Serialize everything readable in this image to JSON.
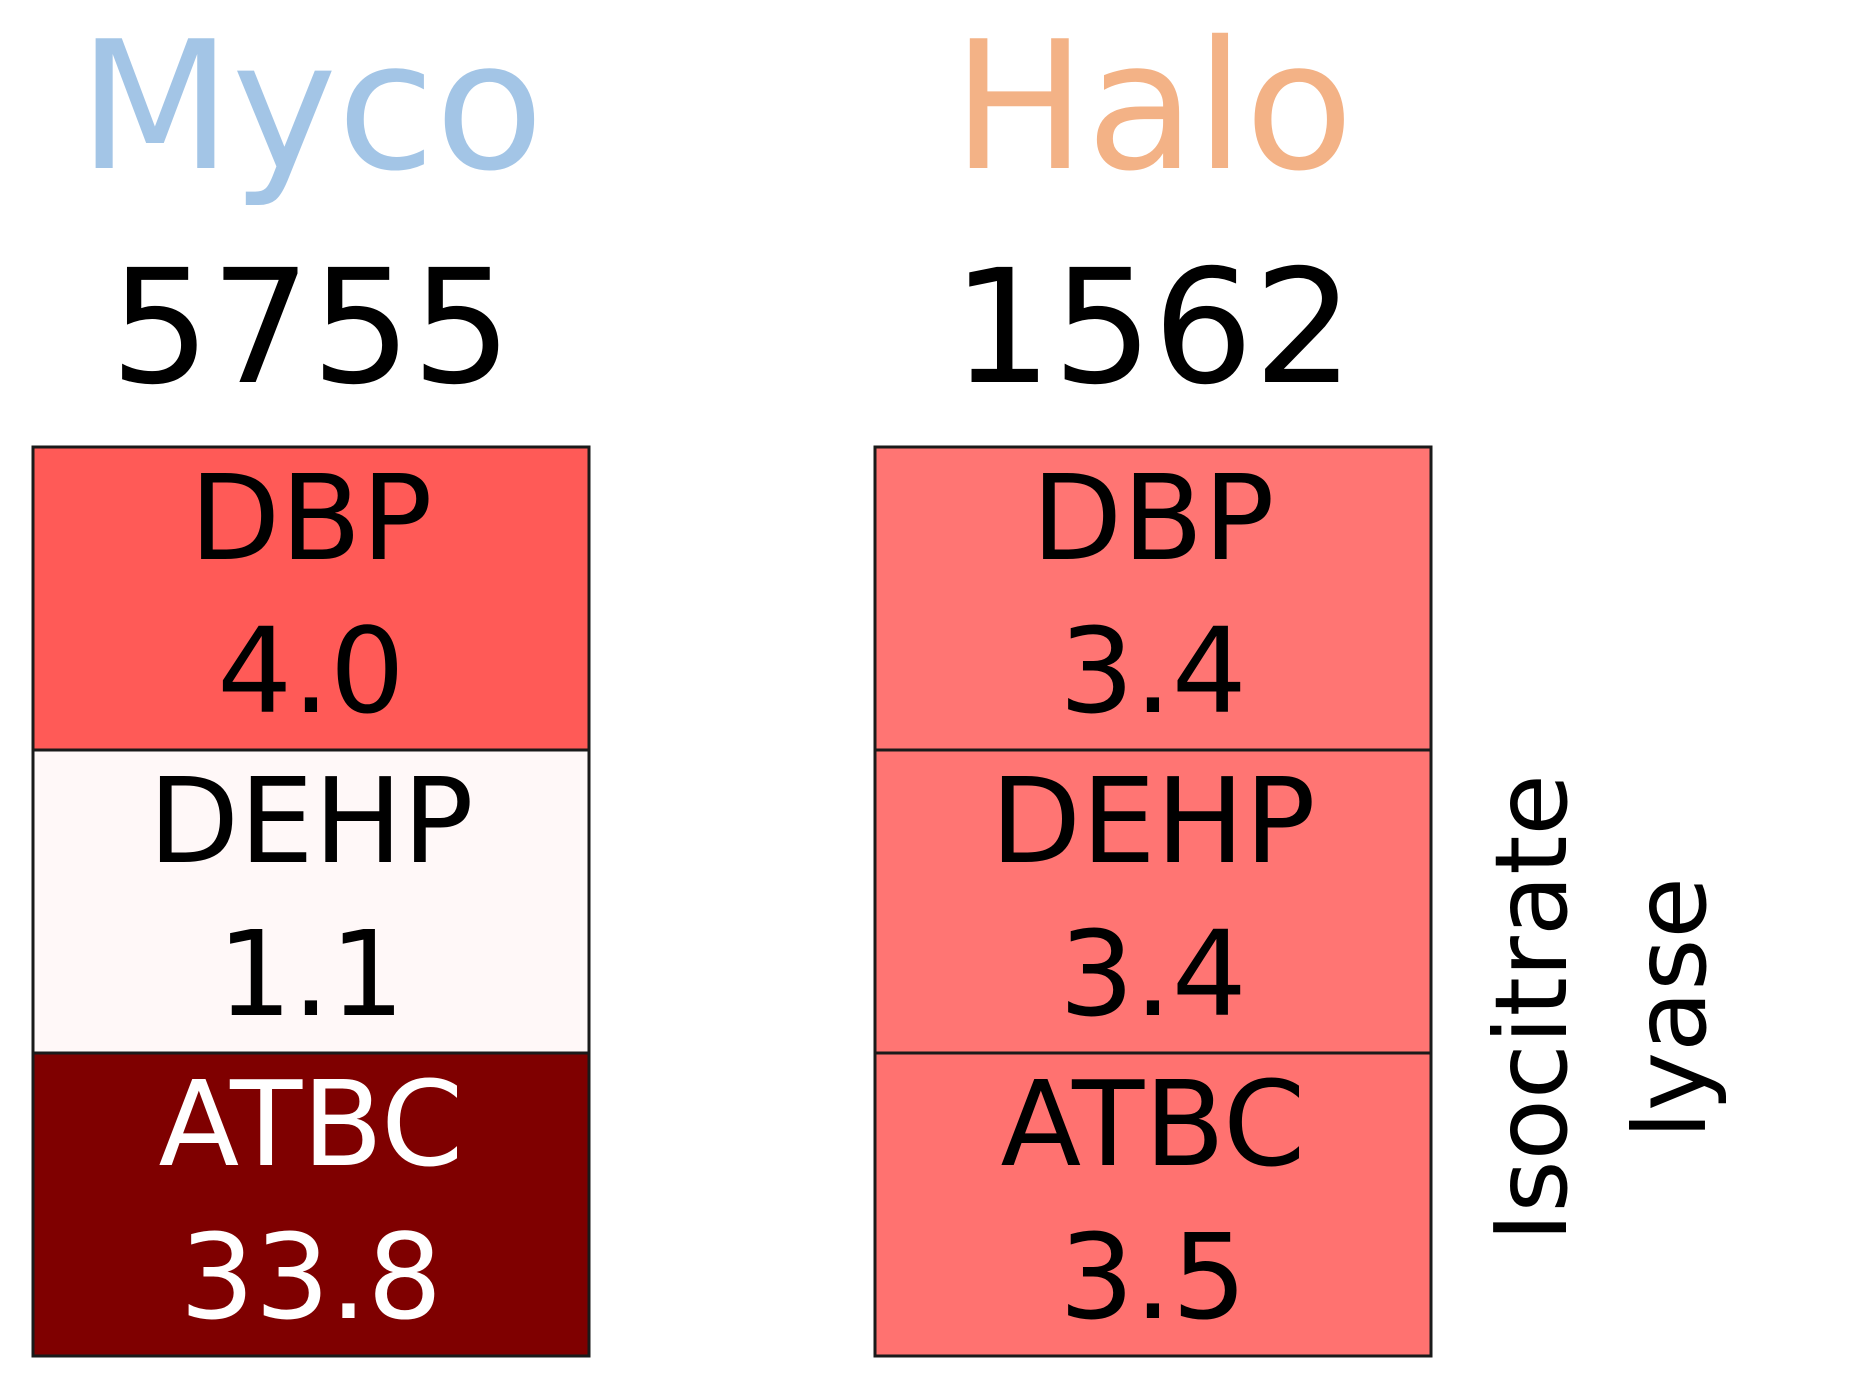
{
  "chart_data": {
    "type": "heatmap",
    "row_label": "Isocitrate\nlyase",
    "columns": [
      {
        "name": "Myco",
        "name_color": "#a3c5e6",
        "total": "5755",
        "cells": [
          {
            "label": "DBP",
            "value": "4.0",
            "fill": "#ff5a57",
            "text_color": "#000000"
          },
          {
            "label": "DEHP",
            "value": "1.1",
            "fill": "#fff8f8",
            "text_color": "#000000"
          },
          {
            "label": "ATBC",
            "value": "33.8",
            "fill": "#7f0000",
            "text_color": "#ffffff"
          }
        ]
      },
      {
        "name": "Halo",
        "name_color": "#f3b286",
        "total": "1562",
        "cells": [
          {
            "label": "DBP",
            "value": "3.4",
            "fill": "#ff7573",
            "text_color": "#000000"
          },
          {
            "label": "DEHP",
            "value": "3.4",
            "fill": "#ff7573",
            "text_color": "#000000"
          },
          {
            "label": "ATBC",
            "value": "3.5",
            "fill": "#ff7270",
            "text_color": "#000000"
          }
        ]
      }
    ]
  }
}
